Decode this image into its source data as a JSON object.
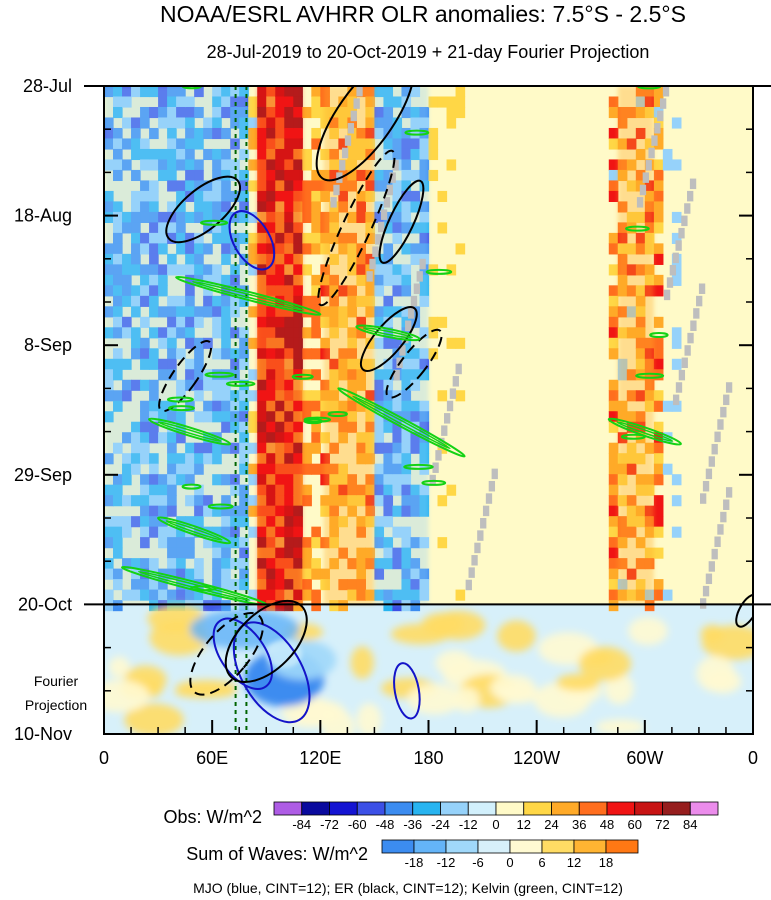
{
  "chart_data": {
    "type": "heatmap",
    "title": "NOAA/ESRL AVHRR OLR anomalies: 7.5°S - 2.5°S",
    "subtitle": "28-Jul-2019 to 20-Oct-2019 + 21-day Fourier Projection",
    "x_ticks": [
      "0",
      "60E",
      "120E",
      "180",
      "120W",
      "60W",
      "0"
    ],
    "x_tick_values": [
      0,
      60,
      120,
      180,
      240,
      300,
      360
    ],
    "xlim": [
      0,
      360
    ],
    "y_ticks": [
      "28-Jul",
      "18-Aug",
      "8-Sep",
      "29-Sep",
      "20-Oct",
      "10-Nov"
    ],
    "y_tick_days": [
      0,
      21,
      42,
      63,
      84,
      105
    ],
    "ylim_days": [
      0,
      105
    ],
    "observation_end_label": "20-Oct",
    "projection_label": [
      "Fourier",
      "Projection"
    ],
    "obs_colorbar": {
      "label": "Obs: W/m^2",
      "tick_labels": [
        "-84",
        "-72",
        "-60",
        "-48",
        "-36",
        "-24",
        "-12",
        "0",
        "12",
        "24",
        "36",
        "48",
        "60",
        "72",
        "84"
      ],
      "colors": [
        "#a040e0",
        "#0a0a9e",
        "#1414d2",
        "#3c50e6",
        "#3c8cf0",
        "#28b4f0",
        "#96d2fa",
        "#d2f0fc",
        "#fffac8",
        "#ffd746",
        "#ffaa28",
        "#ff6e1e",
        "#f01414",
        "#c81414",
        "#961e1e",
        "#e878e8"
      ]
    },
    "waves_colorbar": {
      "label": "Sum of Waves: W/m^2",
      "tick_labels": [
        "-18",
        "-12",
        "-6",
        "0",
        "6",
        "12",
        "18"
      ],
      "colors": [
        "#3c8cf0",
        "#64b4f8",
        "#a0d8fa",
        "#d7f0fa",
        "#fffad2",
        "#ffdc64",
        "#ffb432",
        "#ff7814"
      ]
    },
    "footer": "MJO (blue, CINT=12); ER (black, CINT=12); Kelvin (green, CINT=12)",
    "colors": {
      "mjo": "#1414c8",
      "er": "#000000",
      "kelvin": "#14d214",
      "dashed_green_lines": "#006400",
      "missing": "#bebebe"
    },
    "series": [
      {
        "name": "Anomaly band",
        "type": "band",
        "lon": [
          85,
          110
        ],
        "day_range": [
          0,
          84
        ],
        "value_w_m2": 48
      },
      {
        "name": "Anomaly band",
        "type": "band",
        "lon": [
          122,
          150
        ],
        "day_range": [
          0,
          84
        ],
        "value_w_m2": 24
      },
      {
        "name": "Anomaly band",
        "type": "band",
        "lon": [
          0,
          80
        ],
        "day_range": [
          0,
          84
        ],
        "value_w_m2": -24
      },
      {
        "name": "Anomaly band",
        "type": "band",
        "lon": [
          150,
          180
        ],
        "day_range": [
          0,
          84
        ],
        "value_w_m2": -24
      },
      {
        "name": "Anomaly band",
        "type": "band",
        "lon": [
          285,
          305
        ],
        "day_range": [
          0,
          84
        ],
        "value_w_m2": 24
      },
      {
        "name": "Anomaly blob",
        "type": "blob",
        "lon": 100,
        "day": 92,
        "value_w_m2": -12
      },
      {
        "name": "Dashed longitude line",
        "type": "vline",
        "lon": 73
      },
      {
        "name": "Dashed longitude line",
        "type": "vline",
        "lon": 79
      },
      {
        "name": "MJO contour",
        "type": "ellipse",
        "lon": 93,
        "day": 95,
        "style": "solid",
        "wave": "mjo"
      },
      {
        "name": "MJO contour",
        "type": "ellipse",
        "lon": 77,
        "day": 92,
        "style": "solid",
        "wave": "mjo"
      },
      {
        "name": "MJO contour",
        "type": "ellipse",
        "lon": 82,
        "day": 25,
        "style": "solid",
        "wave": "mjo"
      },
      {
        "name": "MJO contour",
        "type": "ellipse",
        "lon": 168,
        "day": 98,
        "style": "solid",
        "wave": "mjo"
      },
      {
        "name": "ER contour",
        "type": "ellipse",
        "lon": 145,
        "day": 5,
        "style": "solid",
        "wave": "er"
      },
      {
        "name": "ER contour",
        "type": "ellipse",
        "lon": 55,
        "day": 20,
        "style": "solid",
        "wave": "er"
      },
      {
        "name": "ER contour",
        "type": "ellipse",
        "lon": 140,
        "day": 23,
        "style": "dashed",
        "wave": "er"
      },
      {
        "name": "ER contour",
        "type": "ellipse",
        "lon": 165,
        "day": 22,
        "style": "solid",
        "wave": "er"
      },
      {
        "name": "ER contour",
        "type": "ellipse",
        "lon": 45,
        "day": 47,
        "style": "dashed",
        "wave": "er"
      },
      {
        "name": "ER contour",
        "type": "ellipse",
        "lon": 158,
        "day": 41,
        "style": "solid",
        "wave": "er"
      },
      {
        "name": "ER contour",
        "type": "ellipse",
        "lon": 172,
        "day": 45,
        "style": "dashed",
        "wave": "er"
      },
      {
        "name": "ER contour",
        "type": "ellipse",
        "lon": 90,
        "day": 90,
        "style": "solid",
        "wave": "er"
      },
      {
        "name": "ER contour",
        "type": "ellipse",
        "lon": 68,
        "day": 92,
        "style": "dashed",
        "wave": "er"
      },
      {
        "name": "ER contour",
        "type": "ellipse",
        "lon": 357,
        "day": 85,
        "style": "solid",
        "wave": "er"
      },
      {
        "name": "Kelvin contour",
        "type": "streak",
        "lon": [
          40,
          120
        ],
        "day": [
          31,
          37
        ],
        "wave": "kelvin"
      },
      {
        "name": "Kelvin contour",
        "type": "streak",
        "lon": [
          130,
          200
        ],
        "day": [
          49,
          60
        ],
        "wave": "kelvin"
      },
      {
        "name": "Kelvin contour",
        "type": "streak",
        "lon": [
          10,
          90
        ],
        "day": [
          78,
          84
        ],
        "wave": "kelvin"
      },
      {
        "name": "Kelvin contour",
        "type": "streak",
        "lon": [
          25,
          70
        ],
        "day": [
          54,
          58
        ],
        "wave": "kelvin"
      },
      {
        "name": "Kelvin contour",
        "type": "streak",
        "lon": [
          30,
          70
        ],
        "day": [
          70,
          74
        ],
        "wave": "kelvin"
      },
      {
        "name": "Kelvin contour",
        "type": "streak",
        "lon": [
          280,
          320
        ],
        "day": [
          54,
          58
        ],
        "wave": "kelvin"
      },
      {
        "name": "Kelvin contour",
        "type": "streak",
        "lon": [
          140,
          175
        ],
        "day": [
          39,
          41
        ],
        "wave": "kelvin"
      }
    ]
  }
}
